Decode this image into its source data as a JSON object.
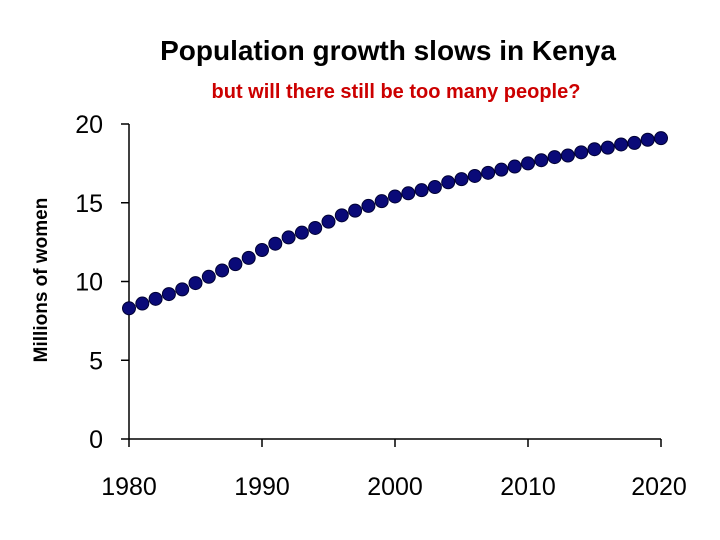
{
  "chart_data": {
    "type": "scatter",
    "title": "Population growth slows in Kenya",
    "subtitle": "but will there still be too many people?",
    "xlabel": "",
    "ylabel": "Millions of women",
    "xlim": [
      1980,
      2020
    ],
    "ylim": [
      0,
      20
    ],
    "xticks": [
      "1980",
      "1990",
      "2000",
      "2010",
      "2020"
    ],
    "yticks": [
      "0",
      "5",
      "10",
      "15",
      "20"
    ],
    "grid": false,
    "legend": "none",
    "colors": {
      "marker": "#0a0a78",
      "title": "#000000",
      "subtitle": "#cc0000"
    },
    "series": [
      {
        "x": [
          1980,
          1981,
          1982,
          1983,
          1984,
          1985,
          1986,
          1987,
          1988,
          1989,
          1990,
          1991,
          1992,
          1993,
          1994,
          1995,
          1996,
          1997,
          1998,
          1999,
          2000,
          2001,
          2002,
          2003,
          2004,
          2005,
          2006,
          2007,
          2008,
          2009,
          2010,
          2011,
          2012,
          2013,
          2014,
          2015,
          2016,
          2017,
          2018,
          2019,
          2020
        ],
        "y": [
          8.3,
          8.6,
          8.9,
          9.2,
          9.5,
          9.9,
          10.3,
          10.7,
          11.1,
          11.5,
          12.0,
          12.4,
          12.8,
          13.1,
          13.4,
          13.8,
          14.2,
          14.5,
          14.8,
          15.1,
          15.4,
          15.6,
          15.8,
          16.0,
          16.3,
          16.5,
          16.7,
          16.9,
          17.1,
          17.3,
          17.5,
          17.7,
          17.9,
          18.0,
          18.2,
          18.4,
          18.5,
          18.7,
          18.8,
          19.0,
          19.1
        ]
      }
    ]
  }
}
